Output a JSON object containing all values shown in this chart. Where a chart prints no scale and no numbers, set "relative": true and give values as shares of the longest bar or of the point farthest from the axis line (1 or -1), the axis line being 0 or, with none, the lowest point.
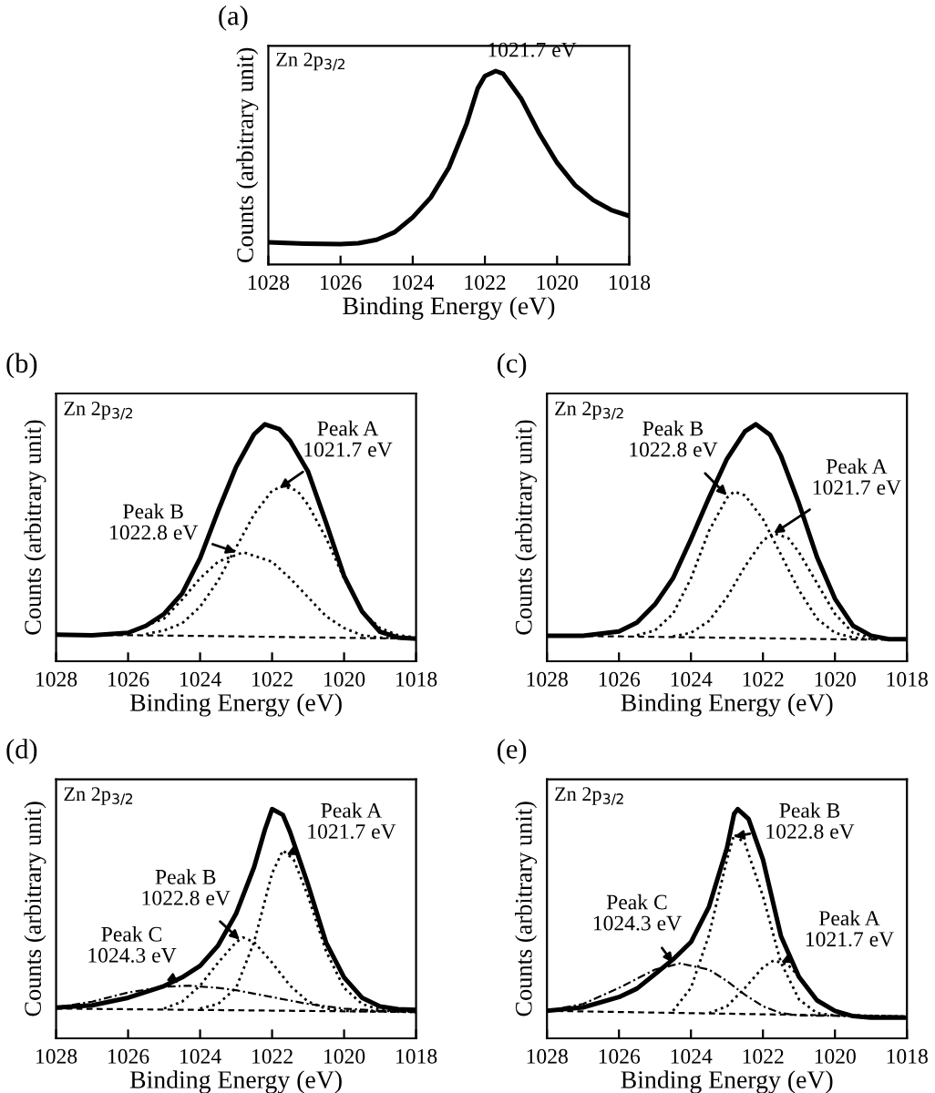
{
  "chart_data": [
    {
      "type": "line",
      "title": "(a)",
      "xlabel": "Binding Energy (eV)",
      "ylabel": "Counts (arbitrary unit)",
      "relative": true,
      "tick_labels": "x",
      "xlim": [
        1028,
        1018
      ],
      "xticks": [
        1028,
        1026,
        1024,
        1022,
        1020,
        1018
      ],
      "annotations": [
        "Zn 2p$_{3/2}$",
        {
          "text": "1021.7 eV",
          "x": 1021.7,
          "y": 1
        }
      ],
      "series": [
        {
          "color": "#000000",
          "line_style": "solid",
          "x": [
            1028,
            1027,
            1026,
            1025.5,
            1025,
            1024.5,
            1024,
            1023.5,
            1023,
            1022.5,
            1022.2,
            1022,
            1021.7,
            1021.5,
            1021,
            1020.5,
            1020,
            1019.5,
            1019,
            1018.5,
            1018
          ],
          "values": [
            0.115,
            0.108,
            0.105,
            0.11,
            0.128,
            0.167,
            0.244,
            0.346,
            0.5,
            0.73,
            0.91,
            0.974,
            1,
            0.987,
            0.859,
            0.68,
            0.526,
            0.41,
            0.333,
            0.282,
            0.251
          ]
        }
      ]
    },
    {
      "type": "line",
      "title": "(b)",
      "xlabel": "Binding Energy (eV)",
      "ylabel": "Counts (arbitrary unit)",
      "relative": true,
      "tick_labels": "x",
      "xlim": [
        1028,
        1018
      ],
      "xticks": [
        1028,
        1026,
        1024,
        1022,
        1020,
        1018
      ],
      "annotations": [
        "Zn 2p$_{3/2}$",
        {
          "text": "Peak A\n1021.7 eV",
          "x": 1021.8,
          "y": 0.73
        },
        {
          "text": "Peak B\n1022.8 eV",
          "x": 1023.0,
          "y": 0.46
        }
      ],
      "series": [
        {
          "color": "#000000",
          "line_style": "solid",
          "x": [
            1028,
            1027,
            1026,
            1025.5,
            1025,
            1024.5,
            1024,
            1023.5,
            1023,
            1022.5,
            1022.2,
            1021.8,
            1021.5,
            1021,
            1020.5,
            1020,
            1019.5,
            1019,
            1018.5,
            1018
          ],
          "values": [
            0.112,
            0.11,
            0.12,
            0.15,
            0.2,
            0.286,
            0.435,
            0.634,
            0.82,
            0.958,
            1,
            0.98,
            0.93,
            0.8,
            0.585,
            0.36,
            0.21,
            0.124,
            0.1,
            0.095
          ]
        },
        {
          "color": "#000000",
          "line_style": "dashed",
          "x": [
            1028,
            1026,
            1024,
            1022,
            1020,
            1018
          ],
          "values": [
            0.112,
            0.11,
            0.107,
            0.103,
            0.099,
            0.095
          ]
        },
        {
          "color": "#000000",
          "line_style": "dotted",
          "x": [
            1025.5,
            1025,
            1024.5,
            1024,
            1023.5,
            1023,
            1022.5,
            1022,
            1021.7,
            1021.3,
            1021,
            1020.5,
            1020,
            1019.5,
            1019,
            1018.5,
            1018
          ],
          "values": [
            0.115,
            0.13,
            0.16,
            0.23,
            0.34,
            0.48,
            0.62,
            0.72,
            0.739,
            0.72,
            0.66,
            0.52,
            0.35,
            0.21,
            0.14,
            0.11,
            0.1
          ]
        },
        {
          "color": "#000000",
          "line_style": "dotted",
          "x": [
            1026,
            1025,
            1024.5,
            1024,
            1023.5,
            1022.8,
            1022,
            1021.5,
            1021,
            1020.5,
            1020,
            1019.5,
            1019,
            1018
          ],
          "values": [
            0.12,
            0.18,
            0.26,
            0.35,
            0.42,
            0.46,
            0.42,
            0.35,
            0.27,
            0.19,
            0.14,
            0.11,
            0.1,
            0.096
          ]
        }
      ]
    },
    {
      "type": "line",
      "title": "(c)",
      "xlabel": "Binding Energy (eV)",
      "ylabel": "Counts (arbitrary unit)",
      "relative": true,
      "tick_labels": "x",
      "xlim": [
        1028,
        1018
      ],
      "xticks": [
        1028,
        1026,
        1024,
        1022,
        1020,
        1018
      ],
      "annotations": [
        "Zn 2p$_{3/2}$",
        {
          "text": "Peak B\n1022.8 eV",
          "x": 1023.0,
          "y": 0.7
        },
        {
          "text": "Peak A\n1021.7 eV",
          "x": 1021.7,
          "y": 0.54
        }
      ],
      "series": [
        {
          "color": "#000000",
          "line_style": "solid",
          "x": [
            1028,
            1027,
            1026,
            1025.5,
            1025,
            1024.5,
            1024,
            1023.5,
            1023,
            1022.5,
            1022.2,
            1021.8,
            1021.5,
            1021,
            1020.5,
            1020,
            1019.5,
            1019,
            1018.5,
            1018
          ],
          "values": [
            0.108,
            0.108,
            0.126,
            0.163,
            0.24,
            0.35,
            0.515,
            0.69,
            0.854,
            0.97,
            1,
            0.955,
            0.867,
            0.666,
            0.44,
            0.264,
            0.15,
            0.108,
            0.093,
            0.093
          ]
        },
        {
          "color": "#000000",
          "line_style": "dashed",
          "x": [
            1028,
            1026,
            1024,
            1022,
            1020,
            1018
          ],
          "values": [
            0.108,
            0.105,
            0.101,
            0.097,
            0.093,
            0.09
          ]
        },
        {
          "color": "#000000",
          "line_style": "dotted",
          "x": [
            1025.5,
            1025,
            1024.5,
            1024,
            1023.5,
            1023,
            1022.8,
            1022.5,
            1022,
            1021.5,
            1021,
            1020.5,
            1020,
            1019.5,
            1019,
            1018
          ],
          "values": [
            0.11,
            0.13,
            0.2,
            0.35,
            0.55,
            0.69,
            0.716,
            0.7,
            0.6,
            0.45,
            0.3,
            0.18,
            0.12,
            0.1,
            0.095,
            0.09
          ]
        },
        {
          "color": "#000000",
          "line_style": "dotted",
          "x": [
            1024.5,
            1024,
            1023.5,
            1023,
            1022.5,
            1022,
            1021.7,
            1021.3,
            1021,
            1020.5,
            1020,
            1019.5,
            1019,
            1018
          ],
          "values": [
            0.105,
            0.12,
            0.17,
            0.27,
            0.4,
            0.51,
            0.54,
            0.52,
            0.46,
            0.33,
            0.2,
            0.12,
            0.1,
            0.09
          ]
        }
      ]
    },
    {
      "type": "line",
      "title": "(d)",
      "xlabel": "Binding Energy (eV)",
      "ylabel": "Counts (arbitrary unit)",
      "relative": true,
      "tick_labels": "x",
      "xlim": [
        1028,
        1018
      ],
      "xticks": [
        1028,
        1026,
        1024,
        1022,
        1020,
        1018
      ],
      "annotations": [
        "Zn 2p$_{3/2}$",
        {
          "text": "Peak A\n1021.7 eV",
          "x": 1021.6,
          "y": 0.8
        },
        {
          "text": "Peak B\n1022.8 eV",
          "x": 1022.9,
          "y": 0.43
        },
        {
          "text": "Peak C\n1024.3 eV",
          "x": 1024.6,
          "y": 0.24
        }
      ],
      "series": [
        {
          "color": "#000000",
          "line_style": "solid",
          "x": [
            1028,
            1027,
            1026,
            1025,
            1024.5,
            1024,
            1023.5,
            1023,
            1022.5,
            1022.2,
            1022,
            1021.7,
            1021.5,
            1021,
            1020.5,
            1020,
            1019.5,
            1019,
            1018.5,
            1018
          ],
          "values": [
            0.134,
            0.144,
            0.177,
            0.228,
            0.266,
            0.316,
            0.405,
            0.544,
            0.747,
            0.91,
            1,
            0.975,
            0.9,
            0.67,
            0.418,
            0.266,
            0.177,
            0.139,
            0.127,
            0.124
          ]
        },
        {
          "color": "#000000",
          "line_style": "dashed",
          "x": [
            1028,
            1026,
            1024,
            1022,
            1020,
            1018
          ],
          "values": [
            0.13,
            0.127,
            0.124,
            0.121,
            0.118,
            0.115
          ]
        },
        {
          "color": "#000000",
          "line_style": "dotted",
          "x": [
            1024,
            1023.5,
            1023,
            1022.5,
            1022.2,
            1022,
            1021.7,
            1021.4,
            1021,
            1020.5,
            1020,
            1019.5,
            1019,
            1018
          ],
          "values": [
            0.13,
            0.15,
            0.22,
            0.42,
            0.6,
            0.72,
            0.82,
            0.78,
            0.62,
            0.38,
            0.22,
            0.15,
            0.125,
            0.115
          ]
        },
        {
          "color": "#000000",
          "line_style": "dotted",
          "x": [
            1025,
            1024.5,
            1024,
            1023.5,
            1023,
            1022.8,
            1022.5,
            1022,
            1021.5,
            1021,
            1020.5,
            1020,
            1018
          ],
          "values": [
            0.13,
            0.16,
            0.23,
            0.33,
            0.42,
            0.44,
            0.42,
            0.33,
            0.23,
            0.16,
            0.13,
            0.12,
            0.115
          ]
        },
        {
          "color": "#000000",
          "line_style": "dashdot",
          "x": [
            1028,
            1027,
            1026,
            1025,
            1024.3,
            1023.5,
            1023,
            1022,
            1021,
            1020,
            1019,
            1018
          ],
          "values": [
            0.135,
            0.16,
            0.2,
            0.225,
            0.23,
            0.22,
            0.21,
            0.18,
            0.15,
            0.13,
            0.12,
            0.115
          ]
        }
      ]
    },
    {
      "type": "line",
      "title": "(e)",
      "xlabel": "Binding Energy (eV)",
      "ylabel": "Counts (arbitrary unit)",
      "relative": true,
      "tick_labels": "x",
      "xlim": [
        1028,
        1018
      ],
      "xticks": [
        1028,
        1026,
        1024,
        1022,
        1020,
        1018
      ],
      "annotations": [
        "Zn 2p$_{3/2}$",
        {
          "text": "Peak B\n1022.8 eV",
          "x": 1022.8,
          "y": 0.88
        },
        {
          "text": "Peak C\n1024.3 eV",
          "x": 1024.5,
          "y": 0.33
        },
        {
          "text": "Peak A\n1021.7 eV",
          "x": 1021.5,
          "y": 0.33
        }
      ],
      "series": [
        {
          "color": "#000000",
          "line_style": "solid",
          "x": [
            1028,
            1027,
            1026,
            1025.5,
            1025,
            1024.5,
            1024,
            1023.5,
            1023,
            1022.8,
            1022.7,
            1022.4,
            1022,
            1021.5,
            1021,
            1020.5,
            1020,
            1019.5,
            1019,
            1018
          ],
          "values": [
            0.12,
            0.135,
            0.18,
            0.217,
            0.28,
            0.344,
            0.42,
            0.574,
            0.83,
            0.98,
            1,
            0.957,
            0.78,
            0.446,
            0.268,
            0.166,
            0.12,
            0.097,
            0.09,
            0.09
          ]
        },
        {
          "color": "#000000",
          "line_style": "dashed",
          "x": [
            1028,
            1026,
            1024,
            1022,
            1020,
            1018
          ],
          "values": [
            0.12,
            0.115,
            0.11,
            0.105,
            0.1,
            0.095
          ]
        },
        {
          "color": "#000000",
          "line_style": "dotted",
          "x": [
            1024.5,
            1024,
            1023.5,
            1023,
            1022.8,
            1022.5,
            1022,
            1021.5,
            1021,
            1020.5,
            1020,
            1018
          ],
          "values": [
            0.12,
            0.22,
            0.45,
            0.78,
            0.89,
            0.85,
            0.62,
            0.33,
            0.17,
            0.11,
            0.1,
            0.095
          ]
        },
        {
          "color": "#000000",
          "line_style": "dashdot",
          "x": [
            1028,
            1027,
            1026,
            1025,
            1024.3,
            1023.5,
            1023,
            1022.5,
            1022,
            1021.5,
            1021,
            1018
          ],
          "values": [
            0.12,
            0.15,
            0.22,
            0.3,
            0.327,
            0.3,
            0.25,
            0.19,
            0.14,
            0.11,
            0.1,
            0.095
          ]
        },
        {
          "color": "#000000",
          "line_style": "dotted",
          "x": [
            1023.5,
            1023,
            1022.5,
            1022,
            1021.7,
            1021.3,
            1021,
            1020.5,
            1020,
            1019.5,
            1018
          ],
          "values": [
            0.11,
            0.14,
            0.22,
            0.31,
            0.34,
            0.32,
            0.27,
            0.17,
            0.12,
            0.1,
            0.095
          ]
        }
      ]
    }
  ]
}
